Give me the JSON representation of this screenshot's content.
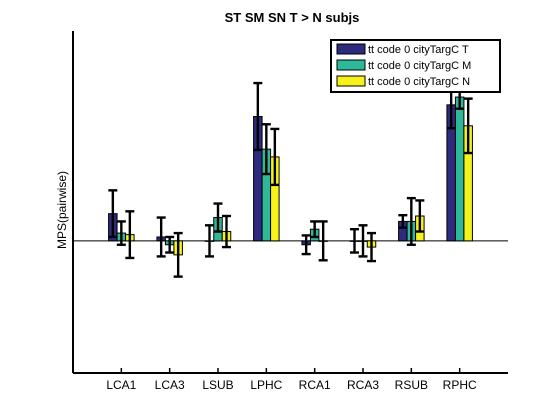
{
  "chart_data": {
    "type": "bar",
    "title": "ST SM SN T > N subjs",
    "xlabel": "",
    "ylabel": "MPS(pairwise)",
    "ylim": [
      -0.17,
      0.27
    ],
    "yticks": [],
    "grid": false,
    "zero_line": true,
    "legend_position": "top-right",
    "categories": [
      "LCA1",
      "LCA3",
      "LSUB",
      "LPHC",
      "RCA1",
      "RCA3",
      "RSUB",
      "RPHC"
    ],
    "series": [
      {
        "name": "tt code 0 cityTargC T",
        "color": "#2e2a7e",
        "values": [
          0.035,
          0.005,
          0.0,
          0.16,
          -0.005,
          0.0,
          0.025,
          0.175
        ],
        "errors": [
          0.03,
          0.025,
          0.02,
          0.043,
          0.012,
          0.015,
          0.008,
          0.03
        ]
      },
      {
        "name": "tt code 0 cityTargC M",
        "color": "#2fb898",
        "values": [
          0.01,
          -0.005,
          0.03,
          0.118,
          0.015,
          0.0,
          0.025,
          0.185
        ],
        "errors": [
          0.015,
          0.01,
          0.018,
          0.032,
          0.01,
          0.02,
          0.03,
          0.015
        ]
      },
      {
        "name": "tt code 0 cityTargC N",
        "color": "#f6f21a",
        "values": [
          0.008,
          -0.018,
          0.012,
          0.108,
          0.0,
          -0.008,
          0.032,
          0.148
        ],
        "errors": [
          0.03,
          0.028,
          0.02,
          0.036,
          0.025,
          0.018,
          0.02,
          0.035
        ]
      }
    ]
  }
}
